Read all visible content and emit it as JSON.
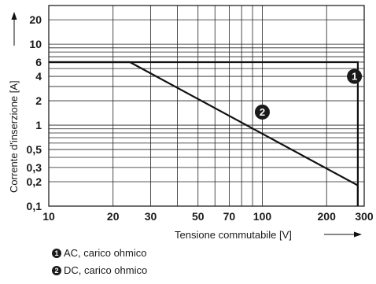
{
  "chart_data": {
    "type": "line",
    "xlabel": "Tensione commutabile [V]",
    "ylabel": "Corrente d'inserzione [A]",
    "x_scale": "log",
    "y_scale": "log",
    "xlim": [
      10,
      300
    ],
    "ylim": [
      0.1,
      30
    ],
    "x_ticks": [
      10,
      20,
      30,
      50,
      70,
      100,
      200,
      300
    ],
    "x_tick_labels": [
      "10",
      "20",
      "30",
      "50",
      "70",
      "100",
      "200",
      "300"
    ],
    "y_ticks": [
      0.1,
      0.2,
      0.3,
      0.5,
      1,
      2,
      4,
      6,
      10,
      20
    ],
    "y_tick_labels": [
      "0,1",
      "0,2",
      "0,3",
      "0,5",
      "1",
      "2",
      "4",
      "6",
      "10",
      "20"
    ],
    "grid": true,
    "series": [
      {
        "id": "1",
        "name": "AC, carico ohmico",
        "x": [
          10,
          280,
          280
        ],
        "y": [
          6,
          6,
          0.1
        ]
      },
      {
        "id": "2",
        "name": "DC, carico ohmico",
        "x": [
          10,
          24,
          280,
          280
        ],
        "y": [
          6,
          6,
          0.18,
          0.1
        ]
      }
    ],
    "markers": [
      {
        "label": "1",
        "x": 270,
        "y": 4
      },
      {
        "label": "2",
        "x": 100,
        "y": 1.45
      }
    ],
    "legend": [
      {
        "badge": "1",
        "text": "AC, carico ohmico"
      },
      {
        "badge": "2",
        "text": "DC, carico ohmico"
      }
    ]
  }
}
